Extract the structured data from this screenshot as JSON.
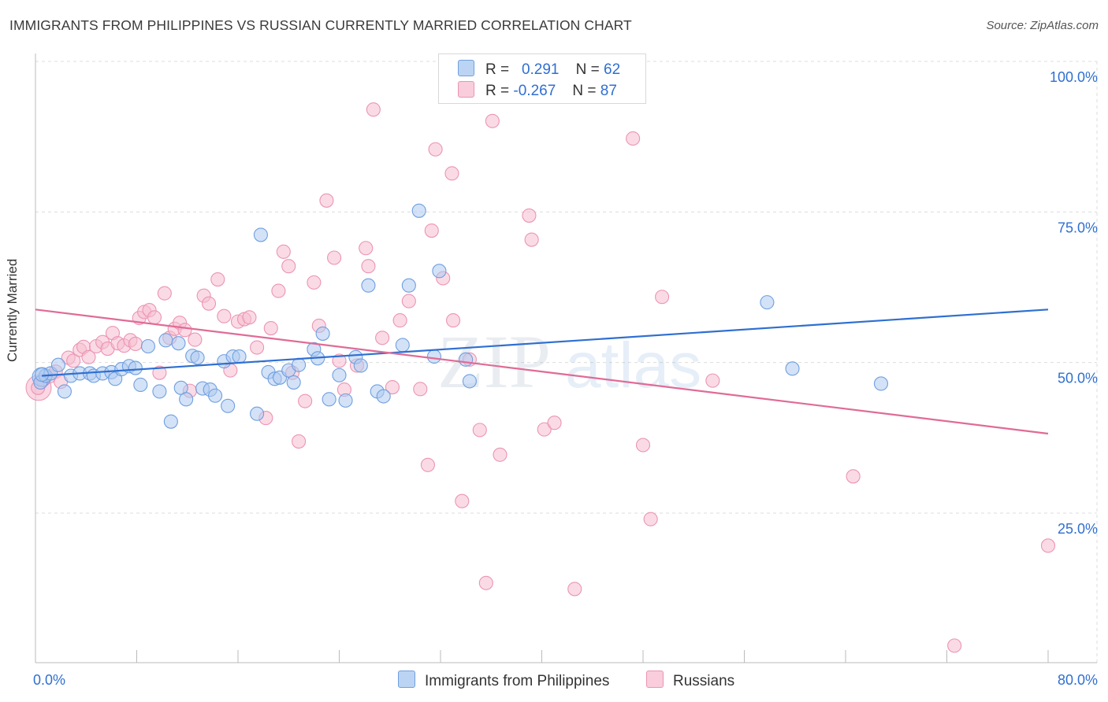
{
  "title": "IMMIGRANTS FROM PHILIPPINES VS RUSSIAN CURRENTLY MARRIED CORRELATION CHART",
  "source": "Source: ZipAtlas.com",
  "watermark": {
    "zip": "ZIP",
    "atlas": "atlas"
  },
  "colors": {
    "blue": "#2f6fd1",
    "blue_fill": "#aecbf0",
    "blue_stroke": "#6f9fe0",
    "pink": "#e06b96",
    "pink_fill": "#f6bdd0",
    "pink_stroke": "#ec94b3",
    "grid": "#dcdcdc",
    "axis_text": "#2f6fd1"
  },
  "legend": {
    "series": [
      {
        "r_label": "R =",
        "r_value": "0.291",
        "n_label": "N =",
        "n_value": "62"
      },
      {
        "r_label": "R =",
        "r_value": "-0.267",
        "n_label": "N =",
        "n_value": "87"
      }
    ]
  },
  "bottom_legend": [
    "Immigrants from Philippines",
    "Russians"
  ],
  "chart_data": {
    "type": "scatter",
    "title": "IMMIGRANTS FROM PHILIPPINES VS RUSSIAN CURRENTLY MARRIED CORRELATION CHART",
    "xlabel": "",
    "ylabel": "Currently Married",
    "xlim": [
      0,
      80
    ],
    "ylim": [
      0,
      105
    ],
    "x_tick_labels": [
      "0.0%",
      "80.0%"
    ],
    "y_ticks": [
      25,
      50,
      75,
      100
    ],
    "y_tick_labels": [
      "25.0%",
      "50.0%",
      "75.0%",
      "100.0%"
    ],
    "x_minor_ticks": [
      8,
      16,
      24,
      32,
      40,
      48,
      56,
      64,
      72,
      80
    ],
    "series": [
      {
        "name": "Immigrants from Philippines",
        "r": 0.291,
        "n": 62,
        "trend": {
          "x0": 0.5,
          "y0": 47.8,
          "x1": 80,
          "y1": 58.8
        },
        "points": [
          [
            0.4,
            46.7
          ],
          [
            0.8,
            47.8
          ],
          [
            1.2,
            48.2
          ],
          [
            1.8,
            49.6
          ],
          [
            2.3,
            45.2
          ],
          [
            2.8,
            47.8
          ],
          [
            3.5,
            48.2
          ],
          [
            4.3,
            48.2
          ],
          [
            4.6,
            47.8
          ],
          [
            5.3,
            48.2
          ],
          [
            6.0,
            48.4
          ],
          [
            6.3,
            47.3
          ],
          [
            6.8,
            48.9
          ],
          [
            7.4,
            49.4
          ],
          [
            7.9,
            49.1
          ],
          [
            8.3,
            46.3
          ],
          [
            8.9,
            52.7
          ],
          [
            9.8,
            45.2
          ],
          [
            10.3,
            53.7
          ],
          [
            10.7,
            40.2
          ],
          [
            11.3,
            53.2
          ],
          [
            11.5,
            45.8
          ],
          [
            11.9,
            43.9
          ],
          [
            12.4,
            51.1
          ],
          [
            12.8,
            50.8
          ],
          [
            13.2,
            45.7
          ],
          [
            13.8,
            45.5
          ],
          [
            14.2,
            44.5
          ],
          [
            14.9,
            50.2
          ],
          [
            15.2,
            42.8
          ],
          [
            15.6,
            51.0
          ],
          [
            16.1,
            51.0
          ],
          [
            17.5,
            41.5
          ],
          [
            17.8,
            71.2
          ],
          [
            18.4,
            48.4
          ],
          [
            18.9,
            47.3
          ],
          [
            19.3,
            47.5
          ],
          [
            20.0,
            48.7
          ],
          [
            20.4,
            46.7
          ],
          [
            20.8,
            49.6
          ],
          [
            22.0,
            52.2
          ],
          [
            22.3,
            50.7
          ],
          [
            22.7,
            54.8
          ],
          [
            23.2,
            43.9
          ],
          [
            24.0,
            47.9
          ],
          [
            24.5,
            43.7
          ],
          [
            25.3,
            50.9
          ],
          [
            25.7,
            49.5
          ],
          [
            26.3,
            62.8
          ],
          [
            27.0,
            45.2
          ],
          [
            27.5,
            44.4
          ],
          [
            29.0,
            52.9
          ],
          [
            29.5,
            62.8
          ],
          [
            30.3,
            75.2
          ],
          [
            31.5,
            51.0
          ],
          [
            31.9,
            65.2
          ],
          [
            34.0,
            50.5
          ],
          [
            34.3,
            46.9
          ],
          [
            57.8,
            60.0
          ],
          [
            59.8,
            49.0
          ],
          [
            66.8,
            46.5
          ],
          [
            0.5,
            48.0
          ]
        ]
      },
      {
        "name": "Russians",
        "r": -0.267,
        "n": 87,
        "trend": {
          "x0": 0.0,
          "y0": 58.8,
          "x1": 80,
          "y1": 38.2
        },
        "points": [
          [
            0.2,
            45.8
          ],
          [
            0.6,
            47.1
          ],
          [
            1.1,
            47.7
          ],
          [
            1.6,
            48.5
          ],
          [
            2.0,
            46.8
          ],
          [
            2.6,
            50.8
          ],
          [
            3.0,
            50.3
          ],
          [
            3.5,
            52.1
          ],
          [
            3.8,
            52.6
          ],
          [
            4.2,
            50.9
          ],
          [
            4.8,
            52.7
          ],
          [
            5.3,
            53.4
          ],
          [
            5.7,
            52.3
          ],
          [
            6.1,
            54.9
          ],
          [
            6.5,
            53.2
          ],
          [
            7.0,
            52.8
          ],
          [
            7.5,
            53.7
          ],
          [
            7.9,
            53.1
          ],
          [
            8.2,
            57.4
          ],
          [
            8.6,
            58.4
          ],
          [
            9.0,
            58.7
          ],
          [
            9.4,
            57.5
          ],
          [
            9.8,
            48.3
          ],
          [
            10.2,
            61.5
          ],
          [
            10.6,
            54.1
          ],
          [
            11.0,
            55.6
          ],
          [
            11.4,
            56.6
          ],
          [
            11.8,
            55.4
          ],
          [
            12.2,
            45.3
          ],
          [
            12.6,
            53.8
          ],
          [
            13.3,
            61.1
          ],
          [
            13.7,
            59.8
          ],
          [
            14.4,
            63.8
          ],
          [
            14.9,
            57.7
          ],
          [
            15.4,
            48.7
          ],
          [
            16.0,
            56.8
          ],
          [
            16.5,
            57.2
          ],
          [
            16.9,
            57.5
          ],
          [
            17.5,
            52.5
          ],
          [
            18.2,
            40.8
          ],
          [
            18.6,
            55.7
          ],
          [
            19.2,
            61.9
          ],
          [
            19.6,
            68.4
          ],
          [
            20.0,
            66.0
          ],
          [
            20.3,
            48.3
          ],
          [
            20.8,
            36.9
          ],
          [
            21.3,
            43.6
          ],
          [
            22.0,
            63.3
          ],
          [
            22.4,
            56.1
          ],
          [
            23.0,
            76.9
          ],
          [
            23.6,
            67.4
          ],
          [
            24.0,
            50.3
          ],
          [
            24.4,
            45.5
          ],
          [
            25.4,
            49.5
          ],
          [
            26.1,
            69.0
          ],
          [
            26.3,
            66.0
          ],
          [
            26.7,
            92.0
          ],
          [
            27.4,
            54.1
          ],
          [
            28.2,
            45.9
          ],
          [
            28.8,
            57.0
          ],
          [
            29.5,
            60.2
          ],
          [
            30.4,
            45.6
          ],
          [
            31.0,
            33.0
          ],
          [
            31.3,
            71.9
          ],
          [
            31.6,
            85.4
          ],
          [
            32.2,
            64.0
          ],
          [
            32.9,
            81.4
          ],
          [
            33.0,
            57.0
          ],
          [
            33.7,
            27.0
          ],
          [
            34.3,
            50.5
          ],
          [
            35.1,
            38.8
          ],
          [
            35.6,
            13.4
          ],
          [
            36.1,
            90.1
          ],
          [
            36.7,
            34.7
          ],
          [
            39.0,
            74.4
          ],
          [
            39.2,
            70.4
          ],
          [
            40.2,
            38.9
          ],
          [
            41.0,
            40.0
          ],
          [
            42.6,
            12.4
          ],
          [
            47.2,
            87.2
          ],
          [
            48.0,
            36.3
          ],
          [
            48.6,
            24.0
          ],
          [
            49.5,
            60.9
          ],
          [
            53.5,
            47.0
          ],
          [
            64.6,
            31.1
          ],
          [
            72.6,
            3.0
          ],
          [
            80.0,
            19.6
          ]
        ]
      }
    ]
  }
}
